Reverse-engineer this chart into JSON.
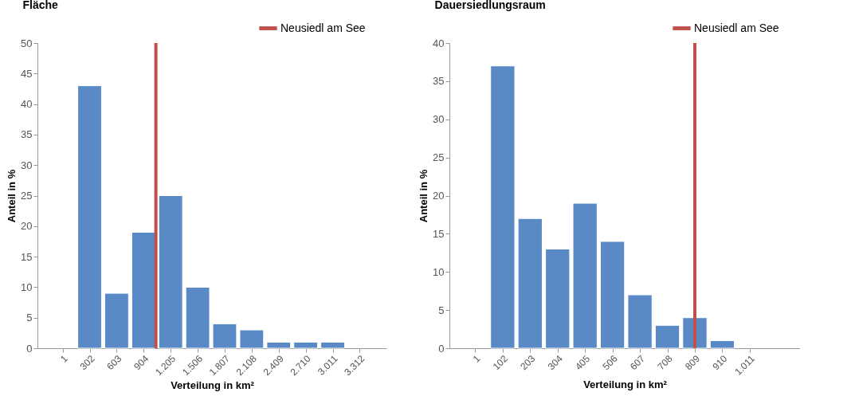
{
  "chart_data": [
    {
      "type": "bar",
      "title": "Fläche",
      "xlabel": "Verteilung in km²",
      "ylabel": "Anteil in %",
      "x": [
        302,
        603,
        904,
        1205,
        1506,
        1807,
        2108,
        2409,
        2710,
        3011
      ],
      "values": [
        43,
        9,
        19,
        25,
        10,
        4,
        3,
        1,
        1,
        1
      ],
      "color": "#5a8ac6",
      "xlim": [
        -280,
        3610
      ],
      "xticks": [
        1,
        302,
        603,
        904,
        {
          "value": 1205,
          "label": "1.205"
        },
        {
          "value": 1506,
          "label": "1.506"
        },
        {
          "value": 1807,
          "label": "1.807"
        },
        {
          "value": 2108,
          "label": "2.108"
        },
        {
          "value": 2409,
          "label": "2.409"
        },
        {
          "value": 2710,
          "label": "2.710"
        },
        {
          "value": 3011,
          "label": "3.011"
        },
        {
          "value": 3312,
          "label": "3.312"
        }
      ],
      "ylim": [
        0,
        50
      ],
      "yticks": [
        0,
        5,
        10,
        15,
        20,
        25,
        30,
        35,
        40,
        45,
        50
      ],
      "grid": false,
      "legend": "top right",
      "ref_lines": [
        {
          "axis": "x",
          "value": 1040,
          "label": "Neusiedl am See",
          "color": "#c0504d"
        }
      ]
    },
    {
      "type": "bar",
      "title": "Dauersiedlungsraum",
      "xlabel": "Verteilung in km²",
      "ylabel": "Anteil in %",
      "x": [
        102,
        203,
        304,
        405,
        506,
        607,
        708,
        809,
        910
      ],
      "values": [
        37,
        17,
        13,
        19,
        14,
        7,
        3,
        4,
        1
      ],
      "color": "#5a8ac6",
      "xlim": [
        -94,
        1196
      ],
      "xticks": [
        1,
        102,
        203,
        304,
        405,
        506,
        607,
        708,
        809,
        910,
        {
          "value": 1011,
          "label": "1.011"
        }
      ],
      "ylim": [
        0,
        40
      ],
      "yticks": [
        0,
        5,
        10,
        15,
        20,
        25,
        30,
        35,
        40
      ],
      "grid": false,
      "legend": "top right",
      "ref_lines": [
        {
          "axis": "x",
          "value": 809,
          "label": "Neusiedl am See",
          "color": "#c0504d"
        }
      ]
    }
  ]
}
